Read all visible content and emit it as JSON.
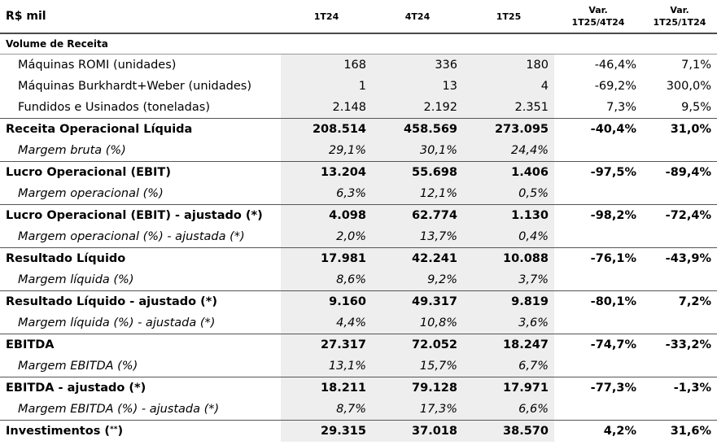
{
  "header": {
    "title": "R$ mil",
    "periods": [
      "1T24",
      "4T24",
      "1T25"
    ],
    "var1": {
      "line1": "Var.",
      "line2": "1T25/4T24"
    },
    "var2": {
      "line1": "Var.",
      "line2": "1T25/1T24"
    }
  },
  "section": {
    "title": "Volume de Receita"
  },
  "rows": [
    {
      "label": "Máquinas ROMI (unidades)",
      "v1": "168",
      "v2": "336",
      "v3": "180",
      "var1": "-46,4%",
      "var2": "7,1%"
    },
    {
      "label": "Máquinas Burkhardt+Weber (unidades)",
      "v1": "1",
      "v2": "13",
      "v3": "4",
      "var1": "-69,2%",
      "var2": "300,0%"
    },
    {
      "label": "Fundidos e Usinados (toneladas)",
      "v1": "2.148",
      "v2": "2.192",
      "v3": "2.351",
      "var1": "7,3%",
      "var2": "9,5%"
    },
    {
      "label": "Receita Operacional Líquida",
      "v1": "208.514",
      "v2": "458.569",
      "v3": "273.095",
      "var1": "-40,4%",
      "var2": "31,0%"
    },
    {
      "label": "Margem bruta (%)",
      "v1": "29,1%",
      "v2": "30,1%",
      "v3": "24,4%",
      "var1": "",
      "var2": ""
    },
    {
      "label": "Lucro Operacional (EBIT)",
      "v1": "13.204",
      "v2": "55.698",
      "v3": "1.406",
      "var1": "-97,5%",
      "var2": "-89,4%"
    },
    {
      "label": "Margem operacional  (%)",
      "v1": "6,3%",
      "v2": "12,1%",
      "v3": "0,5%",
      "var1": "",
      "var2": ""
    },
    {
      "label": "Lucro Operacional (EBIT) - ajustado (*)",
      "v1": "4.098",
      "v2": "62.774",
      "v3": "1.130",
      "var1": "-98,2%",
      "var2": "-72,4%"
    },
    {
      "label": "Margem operacional  (%) - ajustada (*)",
      "v1": "2,0%",
      "v2": "13,7%",
      "v3": "0,4%",
      "var1": "",
      "var2": ""
    },
    {
      "label": "Resultado Líquido",
      "v1": "17.981",
      "v2": "42.241",
      "v3": "10.088",
      "var1": "-76,1%",
      "var2": "-43,9%"
    },
    {
      "label": "Margem líquida (%)",
      "v1": "8,6%",
      "v2": "9,2%",
      "v3": "3,7%",
      "var1": "",
      "var2": ""
    },
    {
      "label": "Resultado Líquido - ajustado (*)",
      "v1": "9.160",
      "v2": "49.317",
      "v3": "9.819",
      "var1": "-80,1%",
      "var2": "7,2%"
    },
    {
      "label": "Margem líquida (%) - ajustada (*)",
      "v1": "4,4%",
      "v2": "10,8%",
      "v3": "3,6%",
      "var1": "",
      "var2": ""
    },
    {
      "label": "EBITDA",
      "v1": "27.317",
      "v2": "72.052",
      "v3": "18.247",
      "var1": "-74,7%",
      "var2": "-33,2%"
    },
    {
      "label": "Margem EBITDA (%)",
      "v1": "13,1%",
      "v2": "15,7%",
      "v3": "6,7%",
      "var1": "",
      "var2": ""
    },
    {
      "label": "EBITDA - ajustado (*)",
      "v1": "18.211",
      "v2": "79.128",
      "v3": "17.971",
      "var1": "-77,3%",
      "var2": "-1,3%"
    },
    {
      "label": "Margem EBITDA (%) - ajustada (*)",
      "v1": "8,7%",
      "v2": "17,3%",
      "v3": "6,6%",
      "var1": "",
      "var2": ""
    },
    {
      "label": "Investimentos (",
      "sup": "**",
      "close": ")",
      "v1": "29.315",
      "v2": "37.018",
      "v3": "38.570",
      "var1": "4,2%",
      "var2": "31,6%"
    }
  ]
}
